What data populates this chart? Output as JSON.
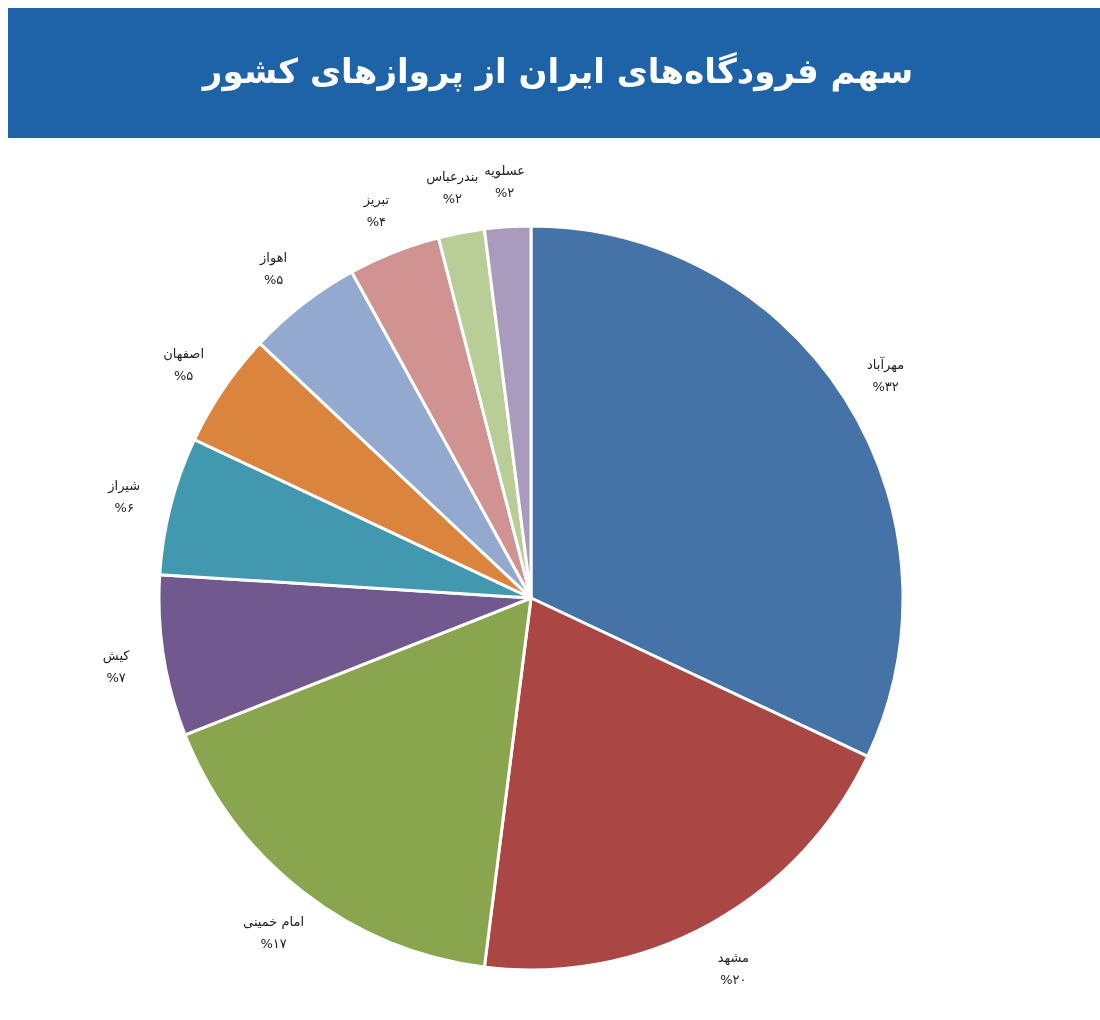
{
  "chart_data": {
    "type": "pie",
    "title": "سهم فرودگاه‌های ایران از پروازهای کشور",
    "categories": [
      "مهرآباد",
      "مشهد",
      "امام خمینی",
      "کیش",
      "شیراز",
      "اصفهان",
      "اهواز",
      "تبریز",
      "بندرعباس",
      "عسلویه"
    ],
    "values": [
      32,
      20,
      17,
      7,
      6,
      5,
      5,
      4,
      2,
      2
    ],
    "value_labels": [
      "%۳۲",
      "%۲۰",
      "%۱۷",
      "%۷",
      "%۶",
      "%۵",
      "%۵",
      "%۴",
      "%۲",
      "%۲"
    ],
    "colors": [
      "#4572a7",
      "#aa4643",
      "#89a54e",
      "#71588f",
      "#4198af",
      "#db843d",
      "#93a9cf",
      "#d19392",
      "#b9cd96",
      "#a99bbd"
    ]
  }
}
